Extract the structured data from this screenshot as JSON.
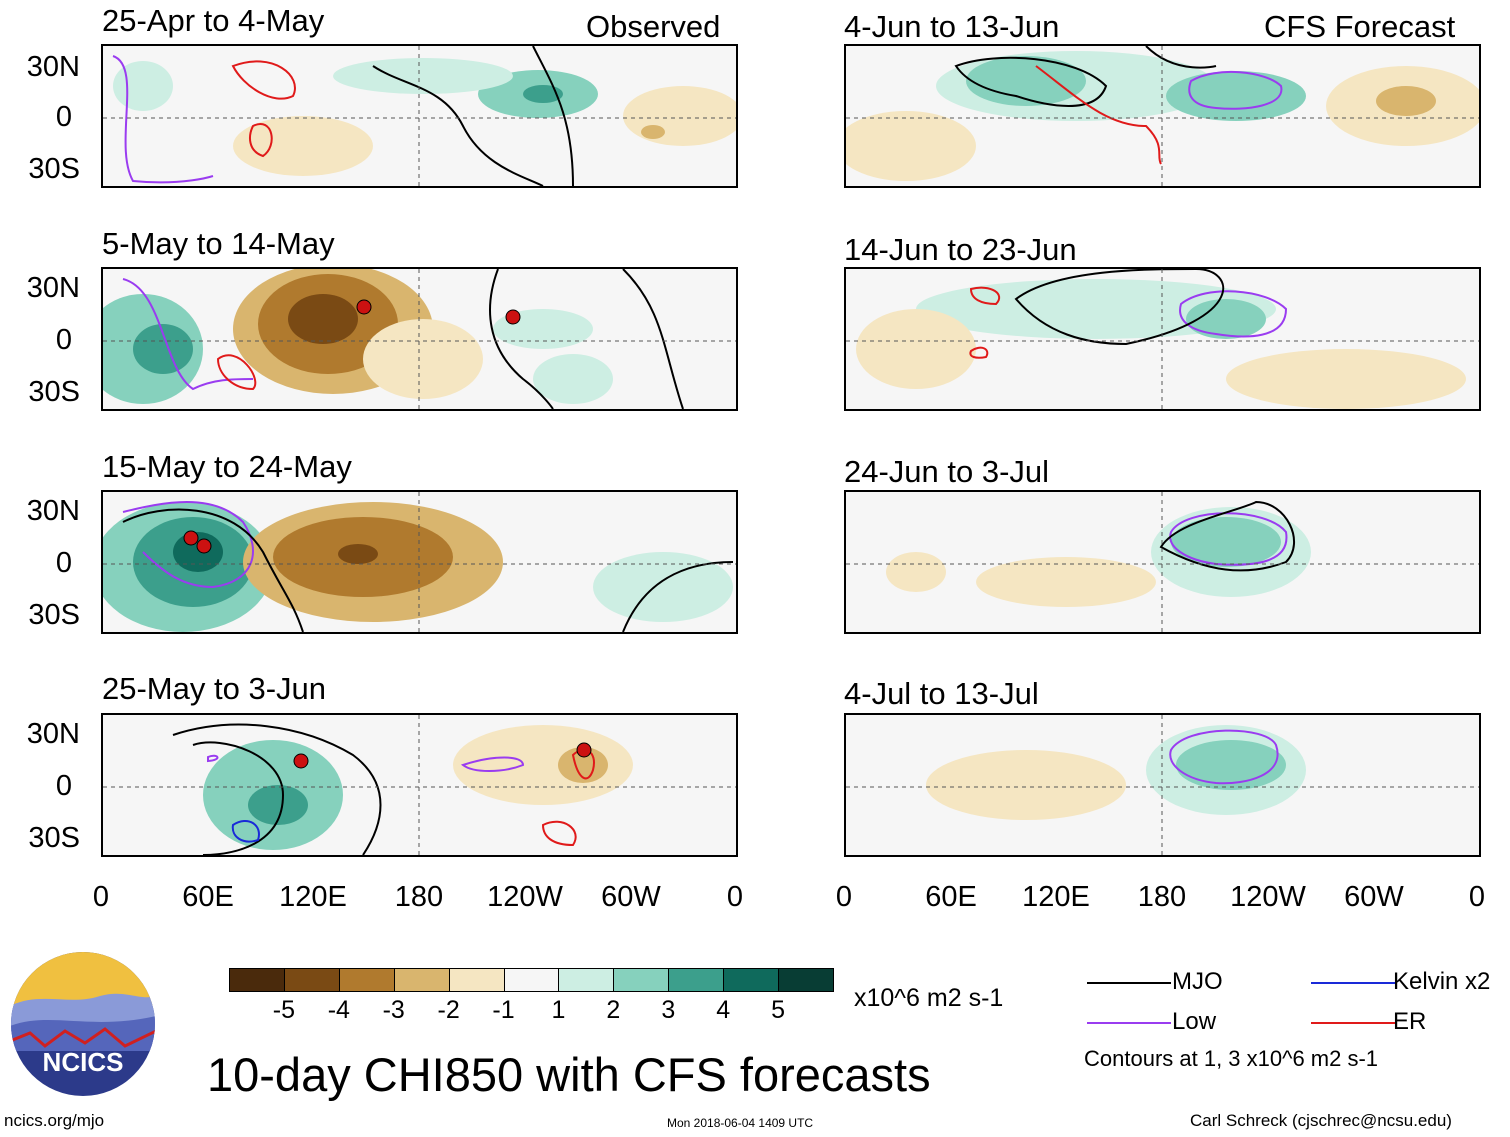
{
  "headers": {
    "left": "Observed",
    "right": "CFS Forecast"
  },
  "panels_left": [
    {
      "title": "25-Apr to 4-May"
    },
    {
      "title": "5-May to 14-May"
    },
    {
      "title": "15-May to 24-May"
    },
    {
      "title": "25-May to 3-Jun"
    }
  ],
  "panels_right": [
    {
      "title": "4-Jun to 13-Jun"
    },
    {
      "title": "14-Jun to 23-Jun"
    },
    {
      "title": "24-Jun to 3-Jul"
    },
    {
      "title": "4-Jul to 13-Jul"
    }
  ],
  "y_ticks": [
    "30N",
    "0",
    "30S"
  ],
  "x_ticks": [
    "0",
    "60E",
    "120E",
    "180",
    "120W",
    "60W",
    "0"
  ],
  "colorbar": {
    "colors": [
      "#4a2a0c",
      "#7a4a14",
      "#b07a2e",
      "#d9b56e",
      "#f5e6c2",
      "#f6f6f6",
      "#cdeee3",
      "#86d1bd",
      "#3c9f8c",
      "#0f6a5c",
      "#083d34"
    ],
    "labels": [
      "-5",
      "-4",
      "-3",
      "-2",
      "-1",
      "1",
      "2",
      "3",
      "4",
      "5"
    ],
    "units": "x10^6 m2 s-1"
  },
  "legend": {
    "items": [
      {
        "label": "MJO",
        "color": "#000000"
      },
      {
        "label": "Kelvin x2",
        "color": "#1a2ad8"
      },
      {
        "label": "Low",
        "color": "#9a3cf0"
      },
      {
        "label": "ER",
        "color": "#e01a1a"
      }
    ],
    "note": "Contours at 1, 3 x10^6 m2 s-1"
  },
  "title": "10-day CHI850 with CFS forecasts",
  "logo_text": "NCICS",
  "footer": {
    "url": "ncics.org/mjo",
    "timestamp": "Mon 2018-06-04 1409 UTC",
    "credit": "Carl Schreck (cjschrec@ncsu.edu)"
  }
}
